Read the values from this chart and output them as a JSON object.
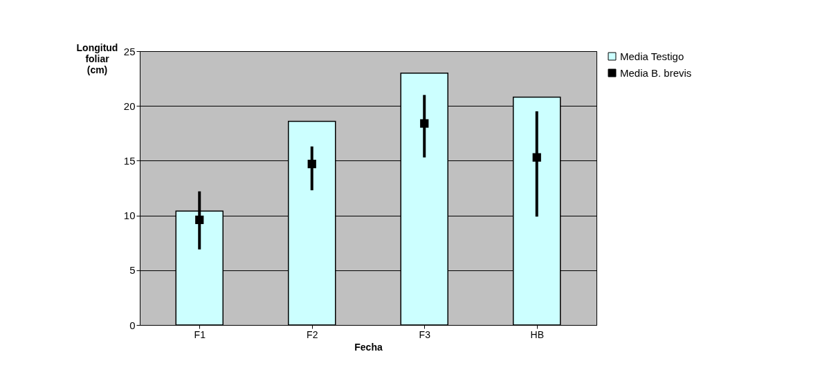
{
  "chart_data": {
    "type": "bar",
    "xlabel": "Fecha",
    "ylabel": "Longitud foliar (cm)",
    "categories": [
      "F1",
      "F2",
      "F3",
      "HB"
    ],
    "series": [
      {
        "name": "Media Testigo",
        "color": "#ccffff",
        "values": [
          10.4,
          18.6,
          23.0,
          20.8
        ]
      },
      {
        "name": "Media  B. brevis",
        "type": "scatter",
        "color": "#000000",
        "marker": "square",
        "values": [
          9.6,
          14.7,
          18.4,
          15.3
        ],
        "errors": [
          [
            6.9,
            12.2
          ],
          [
            12.3,
            16.3
          ],
          [
            15.3,
            21.0
          ],
          [
            9.9,
            19.5
          ]
        ]
      }
    ],
    "ylim": [
      0,
      25
    ],
    "yticks": [
      0,
      5,
      10,
      15,
      20,
      25
    ],
    "grid": "y",
    "legend": "right"
  }
}
